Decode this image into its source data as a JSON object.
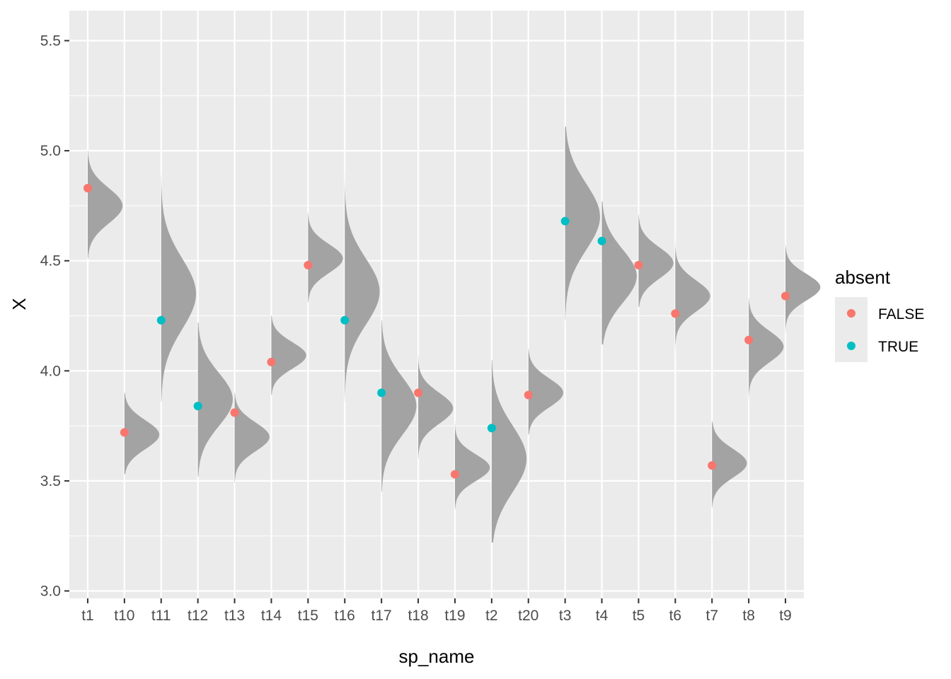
{
  "chart_data": {
    "type": "scatter",
    "xlabel": "sp_name",
    "ylabel": "X",
    "ylim": [
      2.9,
      5.65
    ],
    "yticks": [
      "3.0",
      "3.5",
      "4.0",
      "4.5",
      "5.0",
      "5.5"
    ],
    "categories": [
      "t1",
      "t10",
      "t11",
      "t12",
      "t13",
      "t14",
      "t15",
      "t16",
      "t17",
      "t18",
      "t19",
      "t2",
      "t20",
      "t3",
      "t4",
      "t5",
      "t6",
      "t7",
      "t8",
      "t9"
    ],
    "points": [
      {
        "x": "t1",
        "y": 4.83,
        "absent": "FALSE"
      },
      {
        "x": "t10",
        "y": 3.72,
        "absent": "FALSE"
      },
      {
        "x": "t11",
        "y": 4.23,
        "absent": "TRUE"
      },
      {
        "x": "t12",
        "y": 3.84,
        "absent": "TRUE"
      },
      {
        "x": "t13",
        "y": 3.81,
        "absent": "FALSE"
      },
      {
        "x": "t14",
        "y": 4.04,
        "absent": "FALSE"
      },
      {
        "x": "t15",
        "y": 4.48,
        "absent": "FALSE"
      },
      {
        "x": "t16",
        "y": 4.23,
        "absent": "TRUE"
      },
      {
        "x": "t17",
        "y": 3.9,
        "absent": "TRUE"
      },
      {
        "x": "t18",
        "y": 3.9,
        "absent": "FALSE"
      },
      {
        "x": "t19",
        "y": 3.53,
        "absent": "FALSE"
      },
      {
        "x": "t2",
        "y": 3.74,
        "absent": "TRUE"
      },
      {
        "x": "t20",
        "y": 3.89,
        "absent": "FALSE"
      },
      {
        "x": "t3",
        "y": 4.68,
        "absent": "TRUE"
      },
      {
        "x": "t4",
        "y": 4.59,
        "absent": "TRUE"
      },
      {
        "x": "t5",
        "y": 4.48,
        "absent": "FALSE"
      },
      {
        "x": "t6",
        "y": 4.26,
        "absent": "FALSE"
      },
      {
        "x": "t7",
        "y": 3.57,
        "absent": "FALSE"
      },
      {
        "x": "t8",
        "y": 4.14,
        "absent": "FALSE"
      },
      {
        "x": "t9",
        "y": 4.34,
        "absent": "FALSE"
      }
    ],
    "densities": [
      {
        "x": "t1",
        "mean": 4.75,
        "sd": 0.08,
        "ymin": 4.51,
        "ymax": 5.0
      },
      {
        "x": "t10",
        "mean": 3.71,
        "sd": 0.065,
        "ymin": 3.53,
        "ymax": 3.9
      },
      {
        "x": "t11",
        "mean": 4.35,
        "sd": 0.16,
        "ymin": 3.86,
        "ymax": 4.89
      },
      {
        "x": "t12",
        "mean": 3.87,
        "sd": 0.12,
        "ymin": 3.52,
        "ymax": 4.22
      },
      {
        "x": "t13",
        "mean": 3.7,
        "sd": 0.065,
        "ymin": 3.49,
        "ymax": 3.9
      },
      {
        "x": "t14",
        "mean": 4.07,
        "sd": 0.06,
        "ymin": 3.89,
        "ymax": 4.25
      },
      {
        "x": "t15",
        "mean": 4.51,
        "sd": 0.065,
        "ymin": 4.31,
        "ymax": 4.72
      },
      {
        "x": "t16",
        "mean": 4.36,
        "sd": 0.15,
        "ymin": 3.86,
        "ymax": 4.98
      },
      {
        "x": "t17",
        "mean": 3.84,
        "sd": 0.13,
        "ymin": 3.45,
        "ymax": 4.23
      },
      {
        "x": "t18",
        "mean": 3.83,
        "sd": 0.07,
        "ymin": 3.6,
        "ymax": 4.07
      },
      {
        "x": "t19",
        "mean": 3.56,
        "sd": 0.06,
        "ymin": 3.37,
        "ymax": 3.77
      },
      {
        "x": "t2",
        "mean": 3.6,
        "sd": 0.15,
        "ymin": 3.22,
        "ymax": 4.05
      },
      {
        "x": "t20",
        "mean": 3.9,
        "sd": 0.065,
        "ymin": 3.71,
        "ymax": 4.1
      },
      {
        "x": "t3",
        "mean": 4.7,
        "sd": 0.15,
        "ymin": 4.23,
        "ymax": 5.11
      },
      {
        "x": "t4",
        "mean": 4.43,
        "sd": 0.12,
        "ymin": 4.12,
        "ymax": 4.77
      },
      {
        "x": "t5",
        "mean": 4.49,
        "sd": 0.07,
        "ymin": 4.29,
        "ymax": 4.71
      },
      {
        "x": "t6",
        "mean": 4.34,
        "sd": 0.07,
        "ymin": 4.07,
        "ymax": 4.61
      },
      {
        "x": "t7",
        "mean": 3.58,
        "sd": 0.065,
        "ymin": 3.38,
        "ymax": 3.77
      },
      {
        "x": "t8",
        "mean": 4.11,
        "sd": 0.07,
        "ymin": 3.86,
        "ymax": 4.33
      },
      {
        "x": "t9",
        "mean": 4.38,
        "sd": 0.06,
        "ymin": 4.17,
        "ymax": 4.57
      }
    ],
    "legend": {
      "title": "absent",
      "placement": "right",
      "entries": [
        {
          "label": "FALSE",
          "color": "#F8766D"
        },
        {
          "label": "TRUE",
          "color": "#00BFC4"
        }
      ]
    },
    "density_fill": "#A3A3A3",
    "panel_background": "#EBEBEB",
    "grid": true
  }
}
